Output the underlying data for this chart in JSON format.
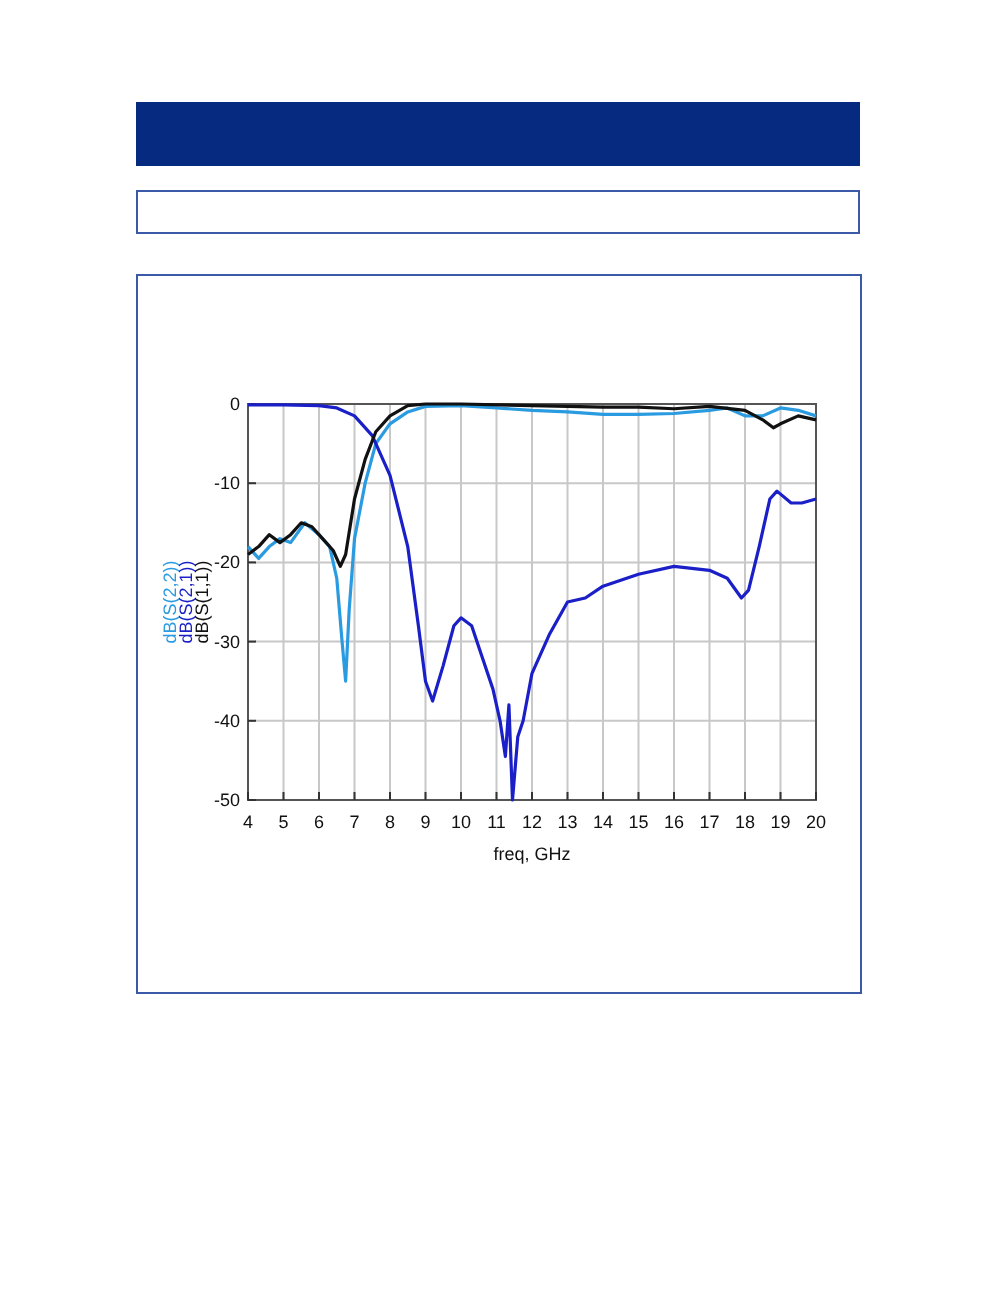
{
  "chart_data": {
    "type": "line",
    "xlabel": "freq, GHz",
    "xlim": [
      4,
      20
    ],
    "xticks": [
      4,
      5,
      6,
      7,
      8,
      9,
      10,
      11,
      12,
      13,
      14,
      15,
      16,
      17,
      18,
      19,
      20
    ],
    "ylim": [
      -50,
      0
    ],
    "yticks": [
      -50,
      -40,
      -30,
      -20,
      -10,
      0
    ],
    "grid": true,
    "legend": "left",
    "line_style": "solid",
    "marker": "none",
    "series": [
      {
        "name": "dB(S(2,2))",
        "color": "#2a9be0",
        "x": [
          4,
          4.3,
          4.6,
          4.9,
          5.2,
          5.6,
          6,
          6.3,
          6.5,
          6.65,
          6.75,
          6.85,
          7,
          7.3,
          7.6,
          8,
          8.5,
          9,
          10,
          11,
          12,
          13,
          14,
          15,
          16,
          17,
          17.5,
          18,
          18.5,
          19,
          19.5,
          20
        ],
        "values": [
          -18,
          -19.5,
          -18,
          -17,
          -17.5,
          -15,
          -16.5,
          -18,
          -22,
          -30,
          -35,
          -26,
          -17,
          -10,
          -5,
          -2.5,
          -1,
          -0.3,
          -0.2,
          -0.5,
          -0.8,
          -1,
          -1.3,
          -1.3,
          -1.2,
          -0.8,
          -0.5,
          -1.5,
          -1.5,
          -0.5,
          -0.8,
          -1.5
        ]
      },
      {
        "name": "dB(S(2,1))",
        "color": "#1a1fc8",
        "x": [
          4,
          5,
          6,
          6.5,
          7,
          7.5,
          8,
          8.5,
          8.8,
          9,
          9.2,
          9.5,
          9.8,
          10,
          10.3,
          10.6,
          10.9,
          11.1,
          11.25,
          11.35,
          11.45,
          11.6,
          11.75,
          12,
          12.5,
          13,
          13.5,
          14,
          15,
          16,
          17,
          17.5,
          17.9,
          18.1,
          18.4,
          18.7,
          18.9,
          19.3,
          19.6,
          20
        ],
        "values": [
          -0.1,
          -0.1,
          -0.2,
          -0.5,
          -1.5,
          -4,
          -9,
          -18,
          -28,
          -35,
          -37.5,
          -33,
          -28,
          -27,
          -28,
          -32,
          -36,
          -40,
          -44.5,
          -38,
          -50,
          -42,
          -40,
          -34,
          -29,
          -25,
          -24.5,
          -23,
          -21.5,
          -20.5,
          -21,
          -22,
          -24.5,
          -23.5,
          -18,
          -12,
          -11,
          -12.5,
          -12.5,
          -12
        ]
      },
      {
        "name": "dB(S(1,1))",
        "color": "#111111",
        "x": [
          4,
          4.3,
          4.6,
          4.9,
          5.2,
          5.5,
          5.8,
          6.1,
          6.4,
          6.6,
          6.75,
          7,
          7.3,
          7.6,
          8,
          8.5,
          9,
          10,
          12,
          14,
          15,
          16,
          17,
          18,
          18.5,
          18.8,
          19,
          19.5,
          20
        ],
        "values": [
          -19,
          -18,
          -16.5,
          -17.5,
          -16.5,
          -15,
          -15.5,
          -17,
          -18.5,
          -20.5,
          -19,
          -12,
          -7,
          -3.5,
          -1.5,
          -0.2,
          0,
          0,
          -0.2,
          -0.4,
          -0.4,
          -0.6,
          -0.3,
          -0.8,
          -2,
          -3,
          -2.5,
          -1.5,
          -2
        ]
      }
    ]
  }
}
